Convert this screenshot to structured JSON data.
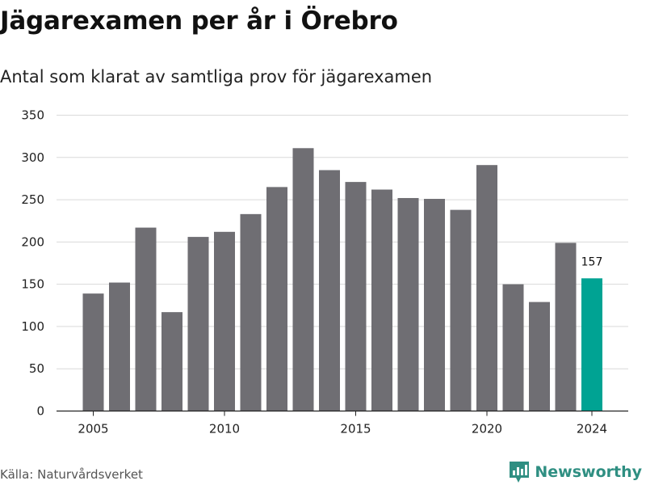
{
  "title": "Jägarexamen per år i Örebro",
  "subtitle": "Antal som klarat av samtliga prov för jägarexamen",
  "source": "Källa: Naturvårdsverket",
  "brand": "Newsworthy",
  "colors": {
    "bar": "#6f6e73",
    "highlight": "#00a393",
    "grid": "#d9d9d9",
    "brand": "#2f8f82"
  },
  "chart_data": {
    "type": "bar",
    "title": "Jägarexamen per år i Örebro",
    "subtitle": "Antal som klarat av samtliga prov för jägarexamen",
    "x": [
      2005,
      2006,
      2007,
      2008,
      2009,
      2010,
      2011,
      2012,
      2013,
      2014,
      2015,
      2016,
      2017,
      2018,
      2019,
      2020,
      2021,
      2022,
      2023,
      2024
    ],
    "values": [
      139,
      152,
      217,
      117,
      206,
      212,
      233,
      265,
      311,
      285,
      271,
      262,
      252,
      251,
      238,
      291,
      150,
      129,
      199,
      157
    ],
    "xticks": [
      2005,
      2010,
      2015,
      2020,
      2024
    ],
    "yticks": [
      0,
      50,
      100,
      150,
      200,
      250,
      300,
      350
    ],
    "ylim": [
      0,
      350
    ],
    "grid": true,
    "highlight": {
      "x": 2024,
      "label": "157"
    }
  }
}
